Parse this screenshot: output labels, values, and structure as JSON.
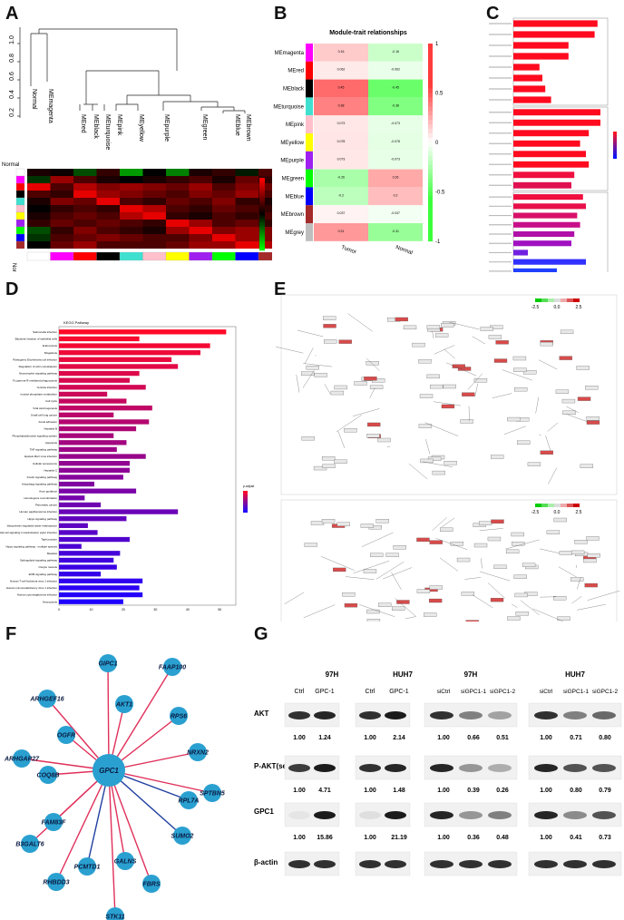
{
  "panels": {
    "A": {
      "label": "A",
      "dendro_leaves": [
        "Normal",
        "MEmagenta",
        "MEred",
        "MEblack",
        "MEturquoise",
        "MEpink",
        "MEyellow",
        "MEpurple",
        "MEgreen",
        "MEblue",
        "MEbrown"
      ],
      "yticks": [
        "1.0",
        "0.8",
        "0.6",
        "0.4",
        "0.2"
      ],
      "heat_row_label": "Normal",
      "heat_col_label": "Normal",
      "color_strip": [
        "#ff00ff",
        "#ff0000",
        "#000000",
        "#40e0d0",
        "#ffc0cb",
        "#ffff00",
        "#a020f0",
        "#00ff00",
        "#0000ff",
        "#a52a2a"
      ],
      "row_strip": [
        "#ff00ff",
        "#ff0000",
        "#000000",
        "#40e0d0",
        "#ffc0cb",
        "#ffff00",
        "#a020f0",
        "#00ff00",
        "#0000ff",
        "#a52a2a"
      ]
    },
    "B": {
      "label": "B",
      "title": "Module-trait relationships",
      "rows": [
        "MEmagenta",
        "MEred",
        "MEblack",
        "MEturquoise",
        "MEpink",
        "MEyellow",
        "MEpurple",
        "MEgreen",
        "MEblue",
        "MEbrown",
        "MEgrey"
      ],
      "row_colors": [
        "#ff00ff",
        "#ff0000",
        "#000000",
        "#40e0d0",
        "#ffc0cb",
        "#ffff00",
        "#a020f0",
        "#00ff00",
        "#0000ff",
        "#a52a2a",
        "#bebebe"
      ],
      "cols": [
        "Tumor",
        "Normal"
      ],
      "values": [
        [
          0.16,
          -0.16
        ],
        [
          0.062,
          -0.062
        ],
        [
          0.45,
          -0.45
        ],
        [
          0.38,
          -0.38
        ],
        [
          0.073,
          -0.073
        ],
        [
          0.078,
          -0.078
        ],
        [
          0.073,
          -0.073
        ],
        [
          -0.26,
          0.26
        ],
        [
          -0.2,
          0.2
        ],
        [
          0.037,
          -0.037
        ],
        [
          0.31,
          -0.31
        ]
      ],
      "scale_ticks": [
        "1",
        "0.5",
        "0",
        "-0.5",
        "-1"
      ]
    },
    "C": {
      "label": "C"
    },
    "D": {
      "label": "D",
      "title": "KEGG Pathway",
      "xticks": [
        "0",
        "10",
        "20",
        "30",
        "40",
        "50"
      ],
      "pathways": [
        "Salmonella infection",
        "Bacterial invasion of epithelial cells",
        "Endocytosis",
        "Shigellosis",
        "Pathogenic Escherichia coli infection",
        "Regulation of actin cytoskeleton",
        "Neurotrophin signaling pathway",
        "Fc gamma R-mediated phagocytosis",
        "Yersinia infection",
        "Inositol phosphate metabolism",
        "Cell cycle",
        "Viral carcinogenesis",
        "Small cell lung cancer",
        "Focal adhesion",
        "Hepatitis B",
        "Phosphatidylinositol signaling system",
        "Apoptosis",
        "TNF signaling pathway",
        "Epstein-Barr virus infection",
        "Cellular senescence",
        "Hepatitis C",
        "Insulin signaling pathway",
        "Autophagy signaling pathway",
        "Axon guidance",
        "Homologous recombination",
        "Pancreatic cancer",
        "Human papillomavirus infection",
        "Hippo signaling pathway",
        "Vasopressin-regulated water reabsorption",
        "Epithelial cell signaling in Helicobacter pylori infection",
        "Tight junction",
        "Hippo signaling pathway - multiple species",
        "Measles",
        "Sphingolipid signaling pathway",
        "Oocyte meiosis",
        "ErbB signaling pathway",
        "Human T-cell leukemia virus 1 infection",
        "Human immunodeficiency virus 1 infection",
        "Human cytomegalovirus infection",
        "Necroptosis"
      ],
      "counts": [
        52,
        25,
        47,
        44,
        35,
        37,
        25,
        22,
        27,
        15,
        21,
        29,
        17,
        28,
        24,
        17,
        21,
        18,
        27,
        22,
        22,
        20,
        11,
        24,
        8,
        13,
        37,
        21,
        9,
        12,
        22,
        7,
        19,
        17,
        18,
        13,
        26,
        25,
        26,
        20
      ],
      "legend_title": "p.adjust"
    },
    "E": {
      "label": "E",
      "scale_ticks": [
        "-2.5",
        "0.0",
        "2.5"
      ]
    },
    "F": {
      "label": "F",
      "center": "GPC1",
      "nodes": [
        "GIPC1",
        "AKT1",
        "FAAP100",
        "RPS6",
        "NRXN2",
        "SPTBN5",
        "RPL7A",
        "SUMO2",
        "FBRS",
        "STK11",
        "GALNS",
        "PCMTD1",
        "RHBDD3",
        "FAM83F",
        "B3GALT6",
        "COQ8B",
        "ARHGAP27",
        "OGFR",
        "ARHGEF16"
      ]
    },
    "G": {
      "label": "G",
      "left": {
        "groups": [
          "97H",
          "HUH7"
        ],
        "lanes": [
          "Ctrl",
          "GPC-1",
          "Ctrl",
          "GPC-1"
        ],
        "akt": [
          "1.00",
          "1.24",
          "1.00",
          "2.14"
        ],
        "pakt": [
          "1.00",
          "4.71",
          "1.00",
          "1.48"
        ],
        "gpc1": [
          "1.00",
          "15.86",
          "1.00",
          "21.19"
        ]
      },
      "right": {
        "groups": [
          "97H",
          "HUH7"
        ],
        "lanes": [
          "siCtrl",
          "siGPC1-1",
          "siGPC1-2",
          "siCtrl",
          "siGPC1-1",
          "siGPC1-2"
        ],
        "akt": [
          "1.00",
          "0.66",
          "0.51",
          "1.00",
          "0.71",
          "0.80"
        ],
        "pakt": [
          "1.00",
          "0.39",
          "0.26",
          "1.00",
          "0.80",
          "0.79"
        ],
        "gpc1": [
          "1.00",
          "0.36",
          "0.48",
          "1.00",
          "0.41",
          "0.73"
        ]
      },
      "row_labels": [
        "AKT",
        "P-AKT(ser473)",
        "GPC1",
        "β-actin"
      ]
    }
  }
}
